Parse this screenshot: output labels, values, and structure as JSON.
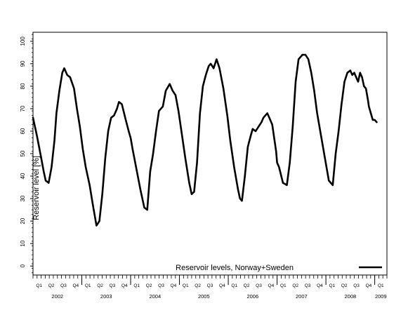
{
  "chart_data": {
    "type": "line",
    "title": "",
    "ylabel": "Reservoir level [%]",
    "xlabel": "",
    "ylim": [
      -4,
      104
    ],
    "yticks": [
      0,
      10,
      20,
      30,
      40,
      50,
      60,
      70,
      80,
      90,
      100
    ],
    "quarter_labels": [
      "Q1",
      "Q2",
      "Q3",
      "Q4"
    ],
    "years": [
      "2002",
      "2003",
      "2004",
      "2005",
      "2006",
      "2007",
      "2008",
      "2009"
    ],
    "xlim": [
      2002.0,
      2009.25
    ],
    "grid": false,
    "legend": {
      "position": "bottom-right",
      "label": "Reservoir levels, Norway+Sweden"
    },
    "series": [
      {
        "name": "Reservoir levels, Norway+Sweden",
        "color": "#000000",
        "x": [
          2002.0,
          2002.08,
          2002.16,
          2002.22,
          2002.26,
          2002.32,
          2002.38,
          2002.44,
          2002.48,
          2002.54,
          2002.6,
          2002.64,
          2002.7,
          2002.76,
          2002.84,
          2002.9,
          2002.96,
          2003.02,
          2003.08,
          2003.16,
          2003.22,
          2003.26,
          2003.3,
          2003.36,
          2003.42,
          2003.48,
          2003.54,
          2003.6,
          2003.66,
          2003.72,
          2003.76,
          2003.82,
          2003.9,
          2003.96,
          2004.0,
          2004.04,
          2004.12,
          2004.2,
          2004.25,
          2004.28,
          2004.34,
          2004.4,
          2004.46,
          2004.52,
          2004.58,
          2004.62,
          2004.66,
          2004.72,
          2004.8,
          2004.86,
          2004.92,
          2004.98,
          2005.04,
          2005.12,
          2005.2,
          2005.25,
          2005.3,
          2005.36,
          2005.42,
          2005.48,
          2005.54,
          2005.6,
          2005.64,
          2005.7,
          2005.76,
          2005.82,
          2005.9,
          2005.98,
          2006.04,
          2006.12,
          2006.2,
          2006.24,
          2006.28,
          2006.34,
          2006.4,
          2006.46,
          2006.5,
          2006.56,
          2006.62,
          2006.68,
          2006.72,
          2006.8,
          2006.9,
          2006.98,
          2007.0,
          2007.04,
          2007.12,
          2007.2,
          2007.26,
          2007.32,
          2007.38,
          2007.44,
          2007.52,
          2007.58,
          2007.64,
          2007.7,
          2007.76,
          2007.82,
          2007.9,
          2007.98,
          2008.06,
          2008.14,
          2008.2,
          2008.26,
          2008.32,
          2008.38,
          2008.44,
          2008.5,
          2008.54,
          2008.58,
          2008.62,
          2008.66,
          2008.7,
          2008.74,
          2008.78,
          2008.82,
          2008.86,
          2008.88,
          2008.92,
          2008.96,
          2009.0,
          2009.04
        ],
        "y": [
          66,
          58,
          49,
          42,
          38,
          37,
          44,
          56,
          68,
          78,
          86,
          88,
          85,
          84,
          79,
          70,
          62,
          52,
          44,
          36,
          28,
          23,
          18,
          20,
          32,
          48,
          60,
          66,
          67,
          70,
          73,
          72,
          65,
          60,
          57,
          52,
          43,
          34,
          29,
          26,
          25,
          42,
          50,
          60,
          69,
          70,
          71,
          78,
          81,
          78,
          76,
          69,
          60,
          48,
          37,
          32,
          33,
          46,
          68,
          80,
          85,
          89,
          90,
          88,
          92,
          88,
          79,
          67,
          56,
          44,
          34,
          30,
          29,
          40,
          53,
          58,
          61,
          60,
          62,
          64,
          66,
          68,
          63,
          51,
          46,
          44,
          37,
          36,
          46,
          62,
          82,
          92,
          94,
          94,
          92,
          86,
          78,
          68,
          58,
          48,
          38,
          36,
          50,
          60,
          72,
          82,
          86,
          87,
          85,
          86,
          84,
          82,
          86,
          84,
          80,
          79,
          74,
          71,
          68,
          65,
          65,
          64
        ]
      }
    ]
  }
}
